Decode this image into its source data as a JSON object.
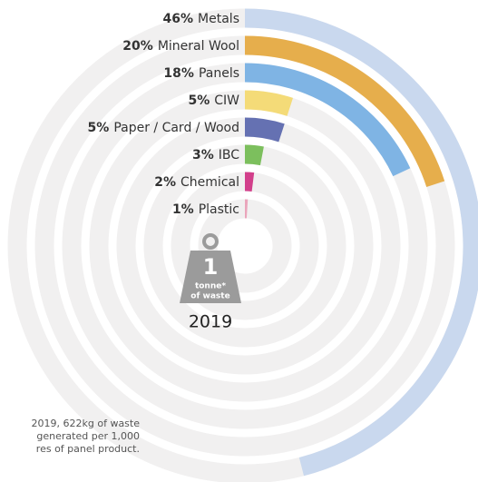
{
  "chart_data": {
    "type": "radial-bar",
    "categories": [
      "Metals",
      "Mineral Wool",
      "Panels",
      "CIW",
      "Paper / Card / Wood",
      "IBC",
      "Chemical",
      "Plastic"
    ],
    "values": [
      46,
      20,
      18,
      5,
      5,
      3,
      2,
      1
    ],
    "value_labels": [
      "46%",
      "20%",
      "18%",
      "5%",
      "5%",
      "3%",
      "2%",
      "1%"
    ],
    "colors": [
      "#c9d8ee",
      "#e6ae4c",
      "#7fb4e4",
      "#f4db78",
      "#6571b2",
      "#7cbf5d",
      "#d23f8b",
      "#eaa5bb"
    ],
    "icon": {
      "number": "1",
      "line1": "tonne*",
      "line2": "of waste"
    },
    "year": "2019",
    "footnote": [
      "2019, 622kg of waste",
      "generated per 1,000",
      "res of panel product."
    ]
  }
}
